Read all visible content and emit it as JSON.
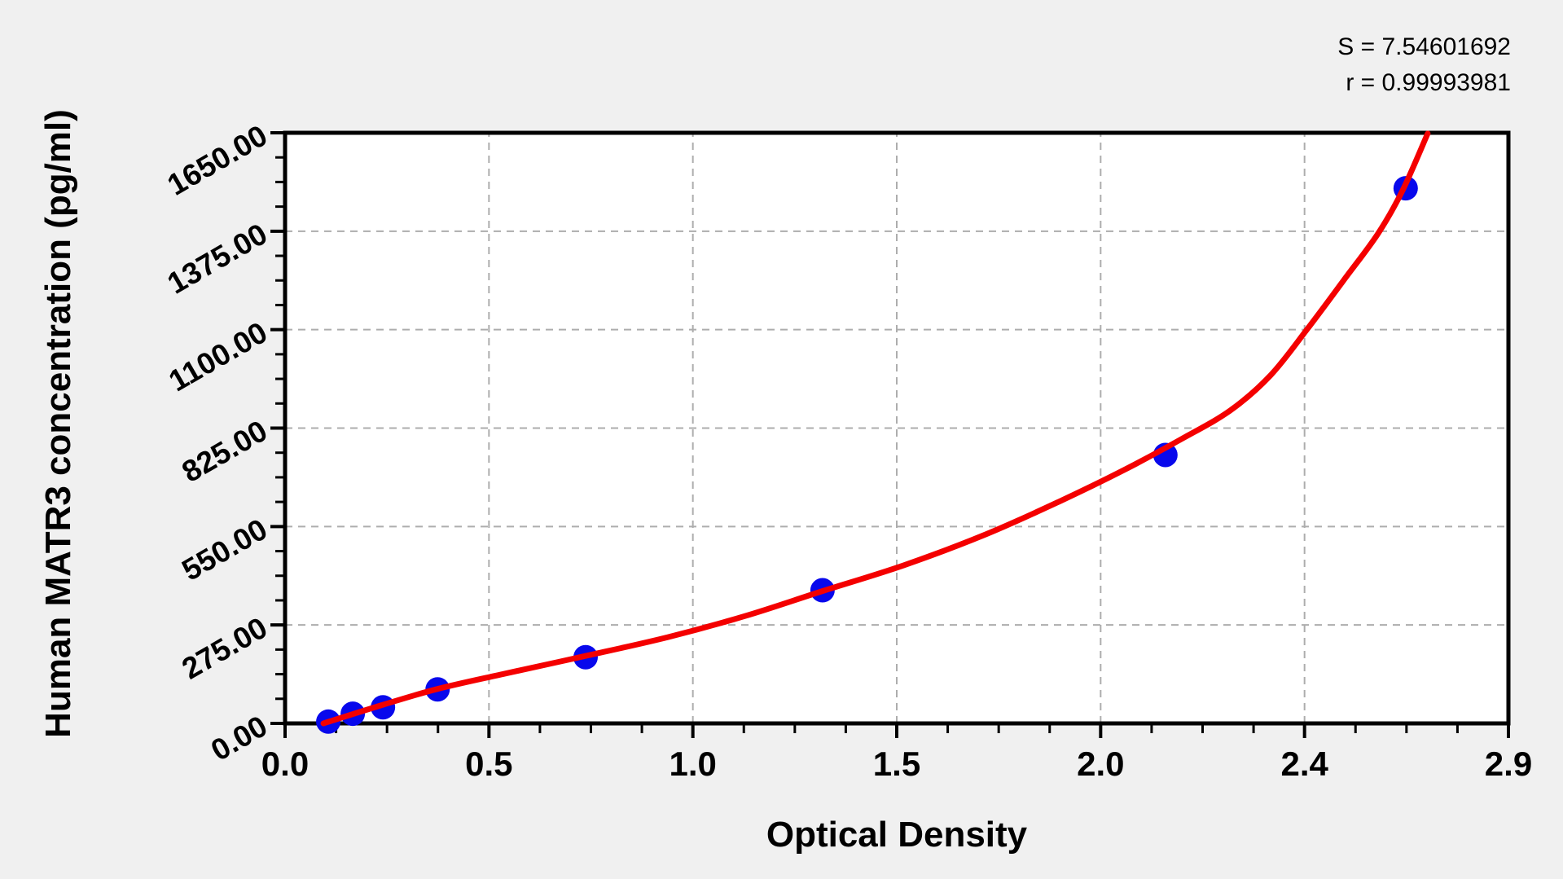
{
  "annotation": {
    "s_label": "S = 7.54601692",
    "r_label": "r = 0.99993981"
  },
  "chart_data": {
    "type": "scatter",
    "title": "",
    "xlabel": "Optical Density",
    "ylabel": "Human MATR3 concentration (pg/ml)",
    "x_tick_values": [
      0.0,
      0.5,
      1.0,
      1.5,
      2.0,
      2.4,
      2.9
    ],
    "x_tick_labels": [
      "0.0",
      "0.5",
      "1.0",
      "1.5",
      "2.0",
      "2.4",
      "2.9"
    ],
    "y_tick_values": [
      0,
      275,
      550,
      825,
      1100,
      1375,
      1650
    ],
    "y_tick_labels": [
      "0.00",
      "275.00",
      "550.00",
      "825.00",
      "1100.00",
      "1375.00",
      "1650.00"
    ],
    "x_range": [
      0,
      2.9
    ],
    "y_range": [
      0,
      1650
    ],
    "minor_ticks_per_major": 4,
    "grid": {
      "style": "dashed",
      "on_major_ticks": true
    },
    "legend_position": "none",
    "fit_statistics": {
      "S": 7.54601692,
      "r": 0.99993981
    },
    "series": [
      {
        "name": "standard-points",
        "type": "scatter",
        "color": "#0808EC",
        "points": [
          [
            0.106,
            5
          ],
          [
            0.166,
            27
          ],
          [
            0.24,
            45
          ],
          [
            0.374,
            95
          ],
          [
            0.737,
            185
          ],
          [
            1.318,
            372
          ],
          [
            2.127,
            750
          ],
          [
            2.648,
            1495
          ]
        ]
      },
      {
        "name": "fitted-curve",
        "type": "line",
        "color": "#F40000",
        "points": [
          [
            0.094,
            0
          ],
          [
            0.24,
            52
          ],
          [
            0.373,
            96
          ],
          [
            0.539,
            139
          ],
          [
            0.739,
            189
          ],
          [
            0.939,
            241
          ],
          [
            1.128,
            300
          ],
          [
            1.316,
            369
          ],
          [
            1.518,
            442
          ],
          [
            1.718,
            528
          ],
          [
            1.897,
            619
          ],
          [
            2.046,
            708
          ],
          [
            2.158,
            794
          ],
          [
            2.254,
            874
          ],
          [
            2.333,
            972
          ],
          [
            2.407,
            1102
          ],
          [
            2.496,
            1238
          ],
          [
            2.58,
            1368
          ],
          [
            2.64,
            1488
          ],
          [
            2.702,
            1648
          ]
        ]
      }
    ]
  },
  "colors": {
    "page_background": "#f0f0f0",
    "plot_background": "#ffffff",
    "axis": "#000000",
    "grid": "#adadad",
    "point": "#0808EC",
    "curve": "#F40000",
    "text": "#000000"
  }
}
